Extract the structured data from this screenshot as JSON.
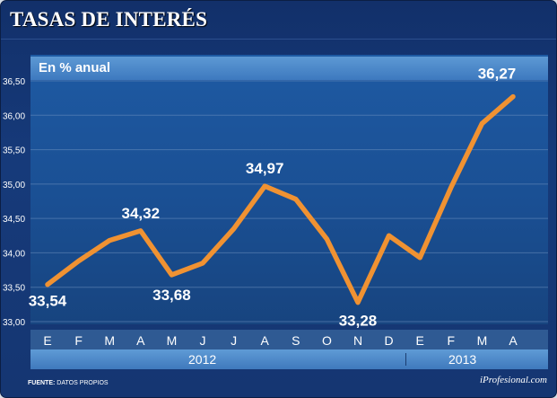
{
  "title": "TASAS DE INTERÉS",
  "subtitle": "En % anual",
  "footer": {
    "label": "FUENTE:",
    "text": "DATOS PROPIOS"
  },
  "brand": "iProfesional.com",
  "years": [
    {
      "label": "2012"
    },
    {
      "label": "2013"
    }
  ],
  "colors": {
    "line": "#f09232",
    "grid": "#6c8fc0"
  },
  "chart_data": {
    "type": "line",
    "title": "TASAS DE INTERÉS",
    "ylabel": "En % anual",
    "xlabel": "",
    "ylim": [
      33.0,
      36.5
    ],
    "y_ticks": [
      "33,00",
      "33,50",
      "34,00",
      "34,50",
      "35,00",
      "35,50",
      "36,00",
      "36,50"
    ],
    "y_tick_values": [
      33.0,
      33.5,
      34.0,
      34.5,
      35.0,
      35.5,
      36.0,
      36.5
    ],
    "grid": true,
    "categories": [
      "E",
      "F",
      "M",
      "A",
      "M",
      "J",
      "J",
      "A",
      "S",
      "O",
      "N",
      "D",
      "E",
      "F",
      "M",
      "A"
    ],
    "series": [
      {
        "values": [
          33.54,
          33.88,
          34.18,
          34.32,
          33.68,
          33.85,
          34.35,
          34.97,
          34.78,
          34.2,
          33.28,
          34.25,
          33.93,
          34.95,
          35.88,
          36.27
        ]
      }
    ],
    "data_labels": [
      {
        "index": 0,
        "text": "33,54"
      },
      {
        "index": 3,
        "text": "34,32"
      },
      {
        "index": 4,
        "text": "33,68"
      },
      {
        "index": 7,
        "text": "34,97"
      },
      {
        "index": 10,
        "text": "33,28"
      },
      {
        "index": 15,
        "text": "36,27"
      }
    ]
  }
}
